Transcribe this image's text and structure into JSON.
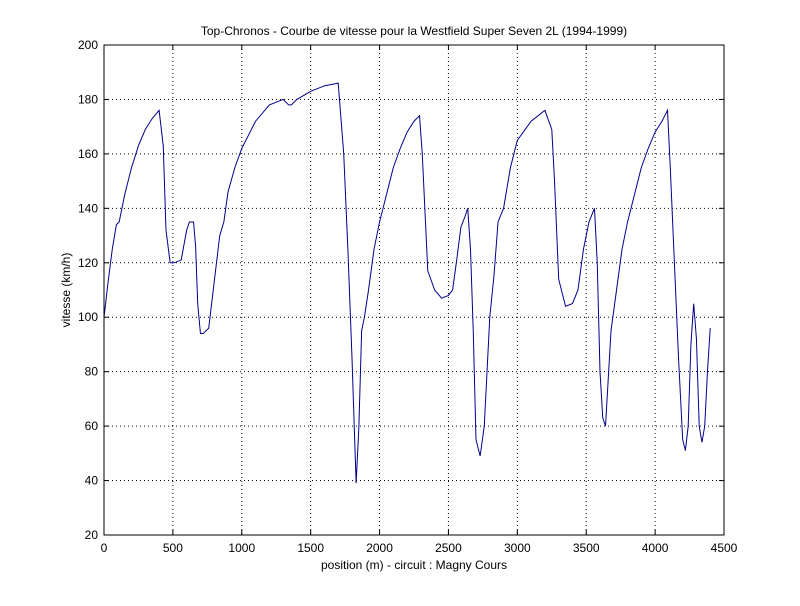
{
  "chart_data": {
    "type": "line",
    "title": "Top-Chronos - Courbe de vitesse pour la Westfield Super Seven 2L (1994-1999)",
    "xlabel": "position (m) - circuit : Magny Cours",
    "ylabel": "vitesse (km/h)",
    "xlim": [
      0,
      4500
    ],
    "ylim": [
      20,
      200
    ],
    "xticks": [
      0,
      500,
      1000,
      1500,
      2000,
      2500,
      3000,
      3500,
      4000,
      4500
    ],
    "yticks": [
      20,
      40,
      60,
      80,
      100,
      120,
      140,
      160,
      180,
      200
    ],
    "grid": true,
    "line_color": "#00008b",
    "series": [
      {
        "x": [
          0,
          30,
          60,
          90,
          110,
          150,
          200,
          250,
          300,
          350,
          400,
          430,
          450,
          480,
          510,
          560,
          600,
          620,
          650,
          665,
          680,
          700,
          720,
          760,
          800,
          840,
          870,
          900,
          950,
          1000,
          1100,
          1200,
          1300,
          1340,
          1360,
          1400,
          1500,
          1600,
          1700,
          1740,
          1770,
          1800,
          1830,
          1850,
          1870,
          1890,
          1920,
          1960,
          2000,
          2050,
          2100,
          2150,
          2200,
          2250,
          2290,
          2310,
          2350,
          2400,
          2450,
          2500,
          2530,
          2560,
          2590,
          2620,
          2640,
          2660,
          2680,
          2700,
          2730,
          2760,
          2800,
          2830,
          2860,
          2900,
          2950,
          3000,
          3100,
          3200,
          3250,
          3270,
          3300,
          3350,
          3400,
          3440,
          3480,
          3520,
          3560,
          3580,
          3600,
          3620,
          3640,
          3680,
          3720,
          3760,
          3800,
          3850,
          3900,
          3950,
          4000,
          4050,
          4090,
          4110,
          4140,
          4170,
          4200,
          4220,
          4240,
          4260,
          4280,
          4300,
          4320,
          4340,
          4360,
          4380,
          4400
        ],
        "y": [
          100,
          113,
          125,
          134,
          135,
          145,
          155,
          163,
          169,
          173,
          176,
          163,
          132,
          120,
          120,
          121,
          132,
          135,
          135,
          126,
          105,
          94,
          94,
          96,
          113,
          130,
          135,
          146,
          155,
          162,
          172,
          178,
          180,
          178,
          178,
          180,
          183,
          185,
          186,
          160,
          125,
          85,
          39,
          60,
          95,
          100,
          110,
          125,
          135,
          145,
          155,
          162,
          168,
          172,
          174,
          160,
          117,
          110,
          107,
          108,
          110,
          121,
          133,
          137,
          140,
          125,
          95,
          55,
          49,
          60,
          100,
          115,
          135,
          140,
          155,
          165,
          172,
          176,
          169,
          150,
          114,
          104,
          105,
          110,
          125,
          135,
          140,
          120,
          80,
          63,
          60,
          95,
          110,
          125,
          135,
          145,
          155,
          162,
          168,
          172,
          176,
          155,
          120,
          85,
          55,
          51,
          60,
          90,
          105,
          92,
          60,
          54,
          60,
          80,
          96
        ]
      }
    ]
  }
}
